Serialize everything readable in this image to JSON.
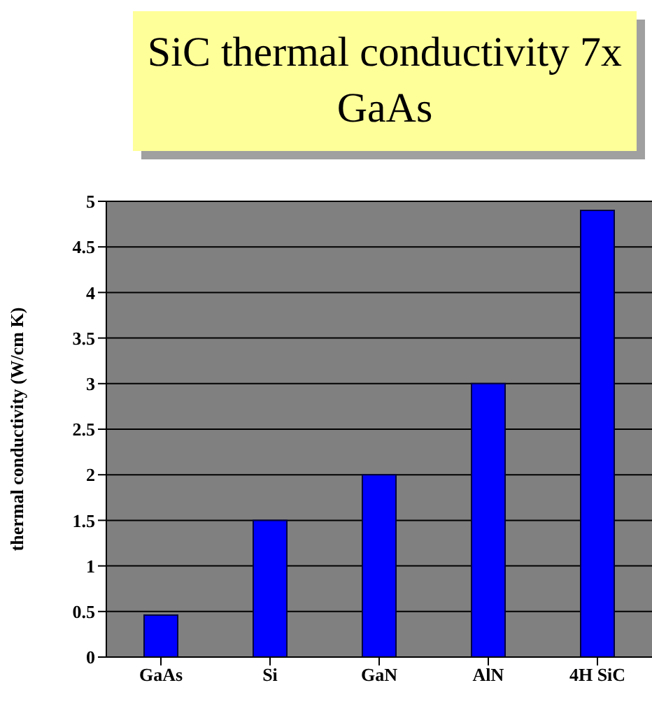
{
  "chart_data": {
    "type": "bar",
    "title": "SiC thermal conductivity 7x GaAs",
    "ylabel": "thermal conductivity (W/cm K)",
    "categories": [
      "GaAs",
      "Si",
      "GaN",
      "AlN",
      "4H SiC"
    ],
    "values": [
      0.46,
      1.5,
      2.0,
      3.0,
      4.9
    ],
    "color": "#0000ff",
    "ylim": [
      0,
      5
    ],
    "yticks": [
      0,
      0.5,
      1,
      1.5,
      2,
      2.5,
      3,
      3.5,
      4,
      4.5,
      5
    ],
    "grid": "y"
  }
}
